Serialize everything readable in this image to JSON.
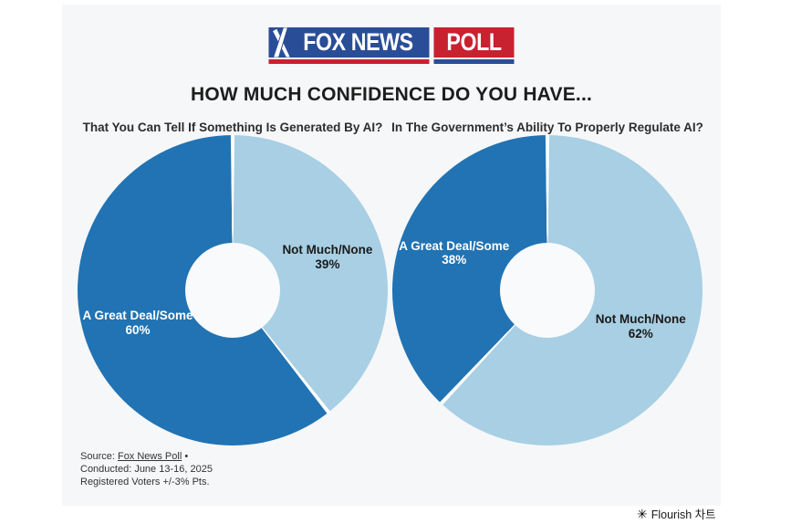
{
  "title": "HOW MUCH CONFIDENCE DO YOU HAVE...",
  "logo": {
    "fox_news": "FOX NEWS",
    "poll": "POLL",
    "blue": "#2a4d97",
    "red": "#c82130"
  },
  "colors": {
    "dark_blue": "#2173b3",
    "light_blue": "#a8cfe4",
    "card_background": "#f6f7f9",
    "hole": "#f8fafb",
    "separator": "#ffffff"
  },
  "charts": [
    {
      "subtitle": "That You Can Tell If Something Is Generated By AI?",
      "slices": [
        {
          "label": "Not Much/None",
          "value": 39,
          "color": "#a8cfe4",
          "text_color": "#1a1a1a"
        },
        {
          "label": "A Great Deal/Some",
          "value": 60,
          "color": "#2173b3",
          "text_color": "#ffffff"
        }
      ]
    },
    {
      "subtitle": "In The Government’s Ability To Properly Regulate AI?",
      "slices": [
        {
          "label": "Not Much/None",
          "value": 62,
          "color": "#a8cfe4",
          "text_color": "#1a1a1a"
        },
        {
          "label": "A Great Deal/Some",
          "value": 38,
          "color": "#2173b3",
          "text_color": "#ffffff"
        }
      ]
    }
  ],
  "chart_data": [
    {
      "type": "pie",
      "title": "That You Can Tell If Something Is Generated By AI?",
      "categories": [
        "Not Much/None",
        "A Great Deal/Some"
      ],
      "values": [
        39,
        60
      ],
      "colors": [
        "#a8cfe4",
        "#2173b3"
      ],
      "donut_hole": true,
      "start_angle_deg": 0,
      "direction": "clockwise",
      "value_suffix": "%"
    },
    {
      "type": "pie",
      "title": "In The Government’s Ability To Properly Regulate AI?",
      "categories": [
        "Not Much/None",
        "A Great Deal/Some"
      ],
      "values": [
        62,
        38
      ],
      "colors": [
        "#a8cfe4",
        "#2173b3"
      ],
      "donut_hole": true,
      "start_angle_deg": 0,
      "direction": "clockwise",
      "value_suffix": "%"
    }
  ],
  "source": {
    "prefix": "Source: ",
    "link_text": "Fox News Poll",
    "suffix": " •",
    "line2": "Conducted: June 13-16, 2025",
    "line3": "Registered Voters +/-3% Pts."
  },
  "attribution": {
    "icon": "✳",
    "text": "Flourish 차트"
  }
}
